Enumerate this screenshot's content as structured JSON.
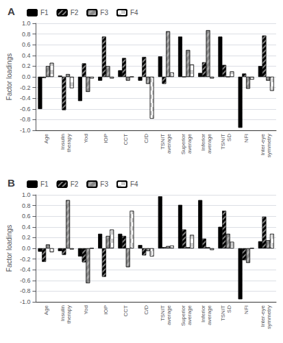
{
  "chart_data": [
    {
      "type": "bar",
      "title": "A",
      "categories": [
        "Age",
        "Insulin\ntherapy",
        "Yod",
        "IOP",
        "CCT",
        "C/D",
        "TSNIT\naverage",
        "Superior\naverage",
        "Inferior\naverage",
        "TSNIT\nSD",
        "NFI",
        "Inter-eye\nsymmetry"
      ],
      "series": [
        {
          "name": "F1",
          "color": "#000000",
          "values": [
            -0.6,
            0.02,
            -0.45,
            -0.07,
            0.12,
            -0.07,
            0.38,
            0.75,
            0.07,
            0.75,
            -0.95,
            0.2
          ]
        },
        {
          "name": "F2",
          "color": "#000000",
          "values": [
            -0.02,
            -0.62,
            0.25,
            0.75,
            0.35,
            0.37,
            -0.13,
            0.0,
            0.27,
            0.22,
            0.06,
            0.77
          ]
        },
        {
          "name": "F3",
          "color": "#aaaaaa",
          "values": [
            0.2,
            0.05,
            -0.28,
            0.2,
            -0.07,
            -0.13,
            0.85,
            0.5,
            0.87,
            0.0,
            -0.22,
            -0.07
          ]
        },
        {
          "name": "F4",
          "color": "#ffffff",
          "values": [
            0.26,
            -0.21,
            -0.03,
            -0.03,
            0.0,
            -0.78,
            0.08,
            0.23,
            -0.03,
            0.1,
            -0.05,
            -0.26
          ]
        }
      ],
      "ylabel": "Factor loadings",
      "ylim": [
        -1.0,
        1.0
      ],
      "yticks": [
        {
          "value": -1.0,
          "label": "-1.0"
        },
        -0.8,
        -0.6,
        -0.4,
        -0.2,
        {
          "value": 0.0,
          "label": "0.0"
        },
        0.2,
        0.4,
        0.6,
        0.8,
        {
          "value": 1.0,
          "label": "1.0"
        }
      ],
      "grid": true,
      "legend": "upper left"
    },
    {
      "type": "bar",
      "title": "B",
      "categories": [
        "Age",
        "Insulin\ntherapy",
        "Yod",
        "IOP",
        "CCT",
        "C/D",
        "TSNIT\naverage",
        "Superior\naverage",
        "Inferior\naverage",
        "TSNIT\nSD",
        "NFI",
        "Inter-eye\nsymmetry"
      ],
      "series": [
        {
          "name": "F1",
          "color": "#000000",
          "values": [
            -0.06,
            -0.05,
            -0.15,
            0.27,
            0.27,
            0.06,
            0.97,
            0.81,
            0.9,
            0.4,
            -0.95,
            0.13
          ]
        },
        {
          "name": "F2",
          "color": "#000000",
          "values": [
            -0.25,
            -0.12,
            -0.26,
            -0.53,
            0.23,
            -0.13,
            0.02,
            0.35,
            0.18,
            0.7,
            -0.22,
            0.59
          ]
        },
        {
          "name": "F3",
          "color": "#aaaaaa",
          "values": [
            0.07,
            0.9,
            -0.65,
            0.23,
            -0.35,
            -0.05,
            0.04,
            0.02,
            0.02,
            0.27,
            -0.27,
            0.15
          ]
        },
        {
          "name": "F4",
          "color": "#ffffff",
          "values": [
            -0.07,
            -0.02,
            0.0,
            0.35,
            0.7,
            -0.15,
            0.05,
            0.25,
            -0.03,
            0.12,
            0.0,
            0.27
          ]
        }
      ],
      "ylabel": "Factor loadings",
      "ylim": [
        -1.0,
        1.0
      ],
      "yticks": [
        {
          "value": -1.0,
          "label": "-1.0"
        },
        -0.8,
        -0.6,
        -0.4,
        -0.2,
        {
          "value": 0.0,
          "label": "0.0"
        },
        0.2,
        0.4,
        0.6,
        0.8,
        {
          "value": 1.0,
          "label": "1.0"
        }
      ],
      "grid": true,
      "legend": "upper left"
    }
  ]
}
